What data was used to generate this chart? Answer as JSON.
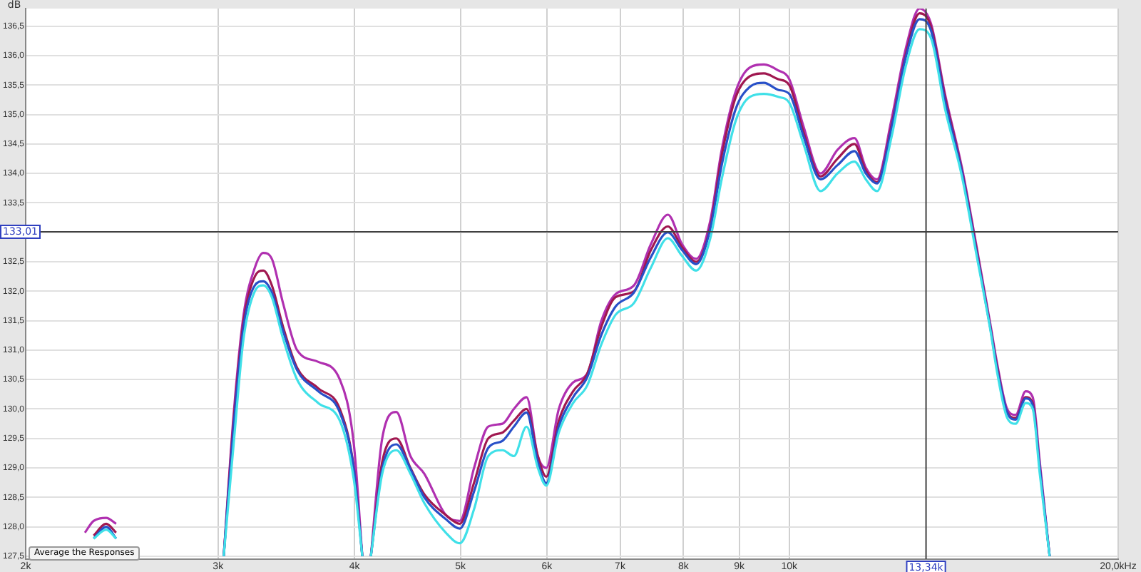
{
  "chart_data": {
    "type": "line",
    "ylabel": "dB",
    "log": "x",
    "grid": true,
    "legend": false,
    "marker": "none",
    "line_style": "solid",
    "xlim": [
      2,
      20
    ],
    "xticks": [
      {
        "value": 2,
        "label": "2k"
      },
      {
        "value": 3,
        "label": "3k"
      },
      {
        "value": 4,
        "label": "4k"
      },
      {
        "value": 5,
        "label": "5k"
      },
      {
        "value": 6,
        "label": "6k"
      },
      {
        "value": 7,
        "label": "7k"
      },
      {
        "value": 8,
        "label": "8k"
      },
      {
        "value": 9,
        "label": "9k"
      },
      {
        "value": 10,
        "label": "10k"
      },
      {
        "value": 20,
        "label": "20,0kHz"
      }
    ],
    "ylim": [
      127.45,
      136.8
    ],
    "yticks": [
      {
        "value": 127.5,
        "label": "127,5"
      },
      {
        "value": 128,
        "label": "128,0"
      },
      {
        "value": 128.5,
        "label": "128,5"
      },
      {
        "value": 129,
        "label": "129,0"
      },
      {
        "value": 129.5,
        "label": "129,5"
      },
      {
        "value": 130,
        "label": "130,0"
      },
      {
        "value": 130.5,
        "label": "130,5"
      },
      {
        "value": 131,
        "label": "131,0"
      },
      {
        "value": 131.5,
        "label": "131,5"
      },
      {
        "value": 132,
        "label": "132,0"
      },
      {
        "value": 132.5,
        "label": "132,5"
      },
      {
        "value": 133,
        "label": null
      },
      {
        "value": 133.5,
        "label": "133,5"
      },
      {
        "value": 134,
        "label": "134,0"
      },
      {
        "value": 134.5,
        "label": "134,5"
      },
      {
        "value": 135,
        "label": "135,0"
      },
      {
        "value": 135.5,
        "label": "135,5"
      },
      {
        "value": 136,
        "label": "136,0"
      },
      {
        "value": 136.5,
        "label": "136,5"
      }
    ],
    "x": [
      2.266,
      2.308,
      2.37,
      2.42,
      2.478,
      2.7,
      3.036,
      3.1,
      3.166,
      3.242,
      3.3,
      3.36,
      3.44,
      3.544,
      3.706,
      3.878,
      3.994,
      4.066,
      4.1,
      4.14,
      4.24,
      4.368,
      4.5,
      4.634,
      4.848,
      4.994,
      5.146,
      5.302,
      5.464,
      5.596,
      5.748,
      5.886,
      5.992,
      6.152,
      6.34,
      6.532,
      6.73,
      6.934,
      7.208,
      7.47,
      7.742,
      7.976,
      8.218,
      8.466,
      8.672,
      8.934,
      9.202,
      9.48,
      9.768,
      10,
      10.304,
      10.68,
      11.068,
      11.472,
      11.75,
      12.032,
      12.398,
      12.774,
      13.158,
      13.478,
      13.884,
      14.388,
      14.826,
      15.274,
      15.504,
      15.828,
      16.114,
      16.456,
      16.704,
      16.954,
      17.31
    ],
    "series": [
      {
        "color": "#40e0e8",
        "values": [
          null,
          127.8,
          127.95,
          127.8,
          null,
          null,
          127.5,
          129.4,
          131.2,
          132.0,
          132.1,
          131.9,
          131.2,
          130.5,
          130.1,
          129.8,
          128.8,
          127.5,
          null,
          127.5,
          128.9,
          129.3,
          128.9,
          128.4,
          127.9,
          127.72,
          128.3,
          129.2,
          129.3,
          129.2,
          129.7,
          129.0,
          128.7,
          129.6,
          130.1,
          130.4,
          131.1,
          131.6,
          131.8,
          132.4,
          132.9,
          132.6,
          132.35,
          132.9,
          133.9,
          134.9,
          135.3,
          135.35,
          135.3,
          135.2,
          134.5,
          133.7,
          134.0,
          134.2,
          133.9,
          133.7,
          134.6,
          135.8,
          136.45,
          136.3,
          135.1,
          133.95,
          132.65,
          131.35,
          130.6,
          129.85,
          129.75,
          130.1,
          130.0,
          128.9,
          127.5
        ]
      },
      {
        "color": "#2850c8",
        "values": [
          null,
          127.8,
          128.0,
          127.8,
          null,
          null,
          127.5,
          129.7,
          131.4,
          132.1,
          132.17,
          131.98,
          131.33,
          130.66,
          130.3,
          129.94,
          128.98,
          127.5,
          null,
          127.5,
          128.98,
          129.4,
          128.98,
          128.5,
          128.13,
          127.97,
          128.6,
          129.34,
          129.46,
          129.7,
          129.94,
          129.1,
          128.74,
          129.7,
          130.2,
          130.54,
          131.26,
          131.74,
          131.98,
          132.58,
          133.0,
          132.7,
          132.46,
          133.06,
          134.14,
          135.1,
          135.47,
          135.54,
          135.42,
          135.35,
          134.63,
          133.9,
          134.14,
          134.38,
          134.0,
          133.83,
          134.75,
          135.95,
          136.62,
          136.43,
          135.23,
          134.02,
          132.7,
          131.38,
          130.66,
          129.94,
          129.82,
          130.18,
          130.06,
          129.0,
          127.5
        ]
      },
      {
        "color": "#a01850",
        "values": [
          null,
          127.85,
          128.05,
          127.9,
          null,
          null,
          127.5,
          129.8,
          131.5,
          132.25,
          132.35,
          132.1,
          131.4,
          130.7,
          130.35,
          130.0,
          129.0,
          127.5,
          null,
          127.5,
          129.1,
          129.5,
          129.0,
          128.55,
          128.2,
          128.05,
          128.75,
          129.5,
          129.6,
          129.8,
          130.0,
          129.2,
          128.85,
          129.8,
          130.3,
          130.6,
          131.4,
          131.9,
          132.0,
          132.7,
          133.1,
          132.75,
          132.5,
          133.1,
          134.3,
          135.3,
          135.65,
          135.7,
          135.6,
          135.5,
          134.7,
          133.95,
          134.25,
          134.5,
          134.05,
          133.85,
          134.8,
          136.0,
          136.72,
          136.5,
          135.3,
          134.05,
          132.75,
          131.4,
          130.7,
          129.95,
          129.85,
          130.2,
          130.1,
          129.0,
          127.5
        ]
      },
      {
        "color": "#b030b0",
        "values": [
          127.9,
          128.1,
          128.15,
          128.05,
          null,
          null,
          127.5,
          129.9,
          131.6,
          132.4,
          132.65,
          132.55,
          131.8,
          131.0,
          130.8,
          130.5,
          129.4,
          127.5,
          null,
          127.5,
          129.5,
          129.95,
          129.2,
          128.9,
          128.2,
          128.1,
          129.0,
          129.7,
          129.75,
          130.0,
          130.2,
          129.2,
          129.0,
          130.0,
          130.45,
          130.6,
          131.5,
          131.95,
          132.1,
          132.8,
          133.3,
          132.8,
          132.55,
          133.2,
          134.4,
          135.4,
          135.8,
          135.85,
          135.75,
          135.6,
          134.8,
          134.0,
          134.4,
          134.6,
          134.1,
          133.9,
          134.9,
          136.1,
          136.8,
          136.55,
          135.35,
          134.1,
          132.8,
          131.45,
          130.75,
          130.0,
          129.9,
          130.3,
          130.2,
          129.1,
          127.5
        ]
      }
    ],
    "ref_lines": [
      {
        "axis": "y",
        "value": 133.01,
        "label": "133,01",
        "color": "#404040"
      },
      {
        "axis": "x",
        "value": 13.34,
        "label": "13,34k",
        "color": "#404040"
      }
    ],
    "annotations": [
      "Average the Responses"
    ]
  }
}
